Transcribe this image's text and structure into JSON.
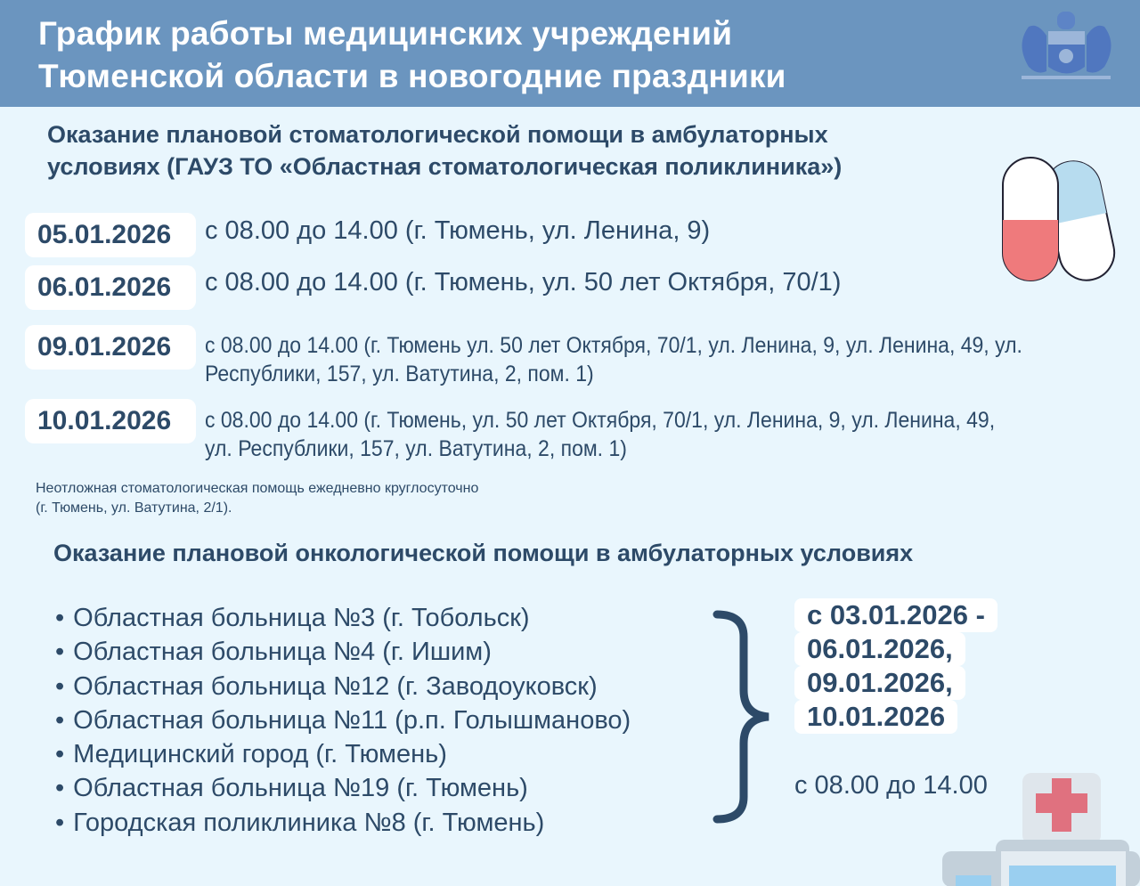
{
  "header": {
    "title_line1": "График работы медицинских учреждений",
    "title_line2": "Тюменской области в новогодние праздники",
    "emblem": "coat-of-arms-tyumen-oblast"
  },
  "dental": {
    "heading_line1": "Оказание плановой стоматологической помощи в амбулаторных",
    "heading_line2": "условиях (ГАУЗ ТО «Областная стоматологическая поликлиника»)",
    "rows": [
      {
        "date": "05.01.2026",
        "line1": "с 08.00 до 14.00 (г. Тюмень, ул. Ленина, 9)",
        "line2": ""
      },
      {
        "date": "06.01.2026",
        "line1": "с 08.00 до 14.00 (г. Тюмень, ул. 50 лет Октября, 70/1)",
        "line2": ""
      },
      {
        "date": "09.01.2026",
        "line1": "с 08.00 до 14.00 (г. Тюмень ул. 50 лет Октября, 70/1, ул. Ленина, 9, ул. Ленина, 49, ул.",
        "line2": "Республики, 157, ул. Ватутина, 2, пом. 1)"
      },
      {
        "date": "10.01.2026",
        "line1": "с 08.00 до 14.00 (г. Тюмень, ул. 50 лет Октября, 70/1, ул. Ленина, 9, ул. Ленина, 49,",
        "line2": "ул. Республики, 157, ул. Ватутина, 2, пом. 1)"
      }
    ],
    "note_line1": "Неотложная стоматологическая помощь ежедневно круглосуточно",
    "note_line2": "(г. Тюмень, ул. Ватутина, 2/1)."
  },
  "oncology": {
    "heading": "Оказание плановой онкологической помощи в амбулаторных условиях",
    "facilities": [
      "Областная больница №3 (г. Тобольск)",
      "Областная больница №4 (г. Ишим)",
      "Областная больница №12 (г. Заводоуковск)",
      "Областная больница №11 (р.п. Голышманово)",
      "Медицинский город (г. Тюмень)",
      "Областная больница №19 (г. Тюмень)",
      "Городская поликлиника №8 (г. Тюмень)"
    ],
    "dates": [
      "с 03.01.2026 -",
      "06.01.2026,",
      "09.01.2026,",
      "10.01.2026"
    ],
    "hours": "с 08.00 до 14.00"
  },
  "colors": {
    "header": "#6b95bf",
    "background": "#e9f6fd",
    "text": "#2d4a68",
    "cross": "#e0717f"
  }
}
